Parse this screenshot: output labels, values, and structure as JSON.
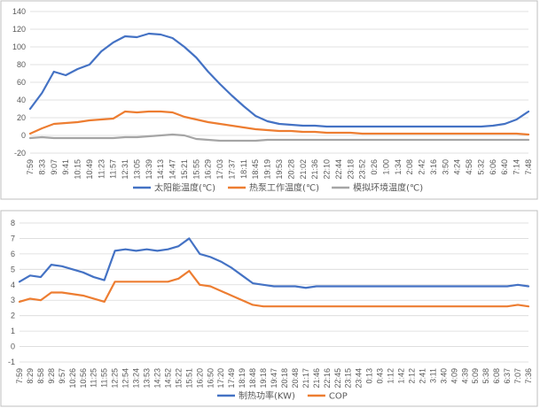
{
  "chart_data": [
    {
      "type": "line",
      "title": "",
      "xlabel": "",
      "ylabel": "",
      "ylim": [
        -20,
        140
      ],
      "yticks": [
        -20,
        0,
        20,
        40,
        60,
        80,
        100,
        120,
        140
      ],
      "grid": true,
      "legend_position": "bottom",
      "categories": [
        "7:59",
        "8:33",
        "9:07",
        "9:41",
        "10:15",
        "10:49",
        "11:23",
        "11:57",
        "12:31",
        "13:05",
        "13:39",
        "14:13",
        "14:47",
        "15:21",
        "15:55",
        "16:29",
        "17:03",
        "17:37",
        "18:11",
        "18:45",
        "19:19",
        "19:53",
        "20:28",
        "21:02",
        "21:36",
        "22:10",
        "22:44",
        "23:18",
        "23:52",
        "0:26",
        "1:00",
        "1:34",
        "2:08",
        "2:42",
        "3:16",
        "3:50",
        "4:24",
        "4:58",
        "5:32",
        "6:06",
        "6:40",
        "7:14",
        "7:48"
      ],
      "series": [
        {
          "name": "太阳能温度(℃)",
          "color": "#4472c4",
          "values": [
            30,
            48,
            72,
            68,
            75,
            80,
            95,
            105,
            112,
            111,
            115,
            114,
            110,
            100,
            88,
            72,
            58,
            45,
            33,
            22,
            16,
            13,
            12,
            11,
            11,
            10,
            10,
            10,
            10,
            10,
            10,
            10,
            10,
            10,
            10,
            10,
            10,
            10,
            10,
            11,
            13,
            18,
            27
          ]
        },
        {
          "name": "热泵工作温度(℃)",
          "color": "#ed7d31",
          "values": [
            2,
            8,
            13,
            14,
            15,
            17,
            18,
            19,
            27,
            26,
            27,
            27,
            26,
            21,
            18,
            15,
            13,
            11,
            9,
            7,
            6,
            5,
            5,
            4,
            4,
            3,
            3,
            3,
            2,
            2,
            2,
            2,
            2,
            2,
            2,
            2,
            2,
            2,
            2,
            2,
            2,
            2,
            1
          ]
        },
        {
          "name": "模拟环境温度(℃)",
          "color": "#a5a5a5",
          "values": [
            -3,
            -2,
            -3,
            -3,
            -3,
            -3,
            -3,
            -3,
            -2,
            -2,
            -1,
            0,
            1,
            0,
            -4,
            -5,
            -6,
            -6,
            -6,
            -6,
            -5,
            -5,
            -5,
            -5,
            -5,
            -5,
            -5,
            -5,
            -5,
            -5,
            -5,
            -5,
            -5,
            -5,
            -5,
            -5,
            -5,
            -5,
            -5,
            -5,
            -5,
            -5,
            -5
          ]
        }
      ]
    },
    {
      "type": "line",
      "title": "",
      "xlabel": "",
      "ylabel": "",
      "ylim": [
        -1,
        8
      ],
      "yticks": [
        -1,
        0,
        1,
        2,
        3,
        4,
        5,
        6,
        7,
        8
      ],
      "grid": true,
      "legend_position": "bottom",
      "categories": [
        "7:59",
        "8:29",
        "8:58",
        "9:28",
        "9:57",
        "10:26",
        "10:56",
        "11:25",
        "11:55",
        "12:25",
        "12:54",
        "13:24",
        "13:53",
        "14:23",
        "14:52",
        "15:22",
        "15:51",
        "16:20",
        "16:50",
        "17:20",
        "17:49",
        "18:19",
        "18:48",
        "19:18",
        "19:47",
        "20:18",
        "20:48",
        "21:17",
        "21:46",
        "22:16",
        "22:45",
        "23:15",
        "23:44",
        "0:13",
        "0:43",
        "1:12",
        "1:42",
        "2:12",
        "2:41",
        "3:11",
        "3:40",
        "4:09",
        "4:39",
        "5:09",
        "5:38",
        "6:08",
        "6:37",
        "7:07",
        "7:36"
      ],
      "series": [
        {
          "name": "制热功率(KW)",
          "color": "#4472c4",
          "values": [
            4.2,
            4.6,
            4.5,
            5.3,
            5.2,
            5.0,
            4.8,
            4.5,
            4.3,
            6.2,
            6.3,
            6.2,
            6.3,
            6.2,
            6.3,
            6.5,
            7.0,
            6.0,
            5.8,
            5.5,
            5.1,
            4.6,
            4.1,
            4.0,
            3.9,
            3.9,
            3.9,
            3.8,
            3.9,
            3.9,
            3.9,
            3.9,
            3.9,
            3.9,
            3.9,
            3.9,
            3.9,
            3.9,
            3.9,
            3.9,
            3.9,
            3.9,
            3.9,
            3.9,
            3.9,
            3.9,
            3.9,
            4.0,
            3.9
          ]
        },
        {
          "name": "COP",
          "color": "#ed7d31",
          "values": [
            2.9,
            3.1,
            3.0,
            3.5,
            3.5,
            3.4,
            3.3,
            3.1,
            2.9,
            4.2,
            4.2,
            4.2,
            4.2,
            4.2,
            4.2,
            4.4,
            4.9,
            4.0,
            3.9,
            3.6,
            3.3,
            3.0,
            2.7,
            2.6,
            2.6,
            2.6,
            2.6,
            2.6,
            2.6,
            2.6,
            2.6,
            2.6,
            2.6,
            2.6,
            2.6,
            2.6,
            2.6,
            2.6,
            2.6,
            2.6,
            2.6,
            2.6,
            2.6,
            2.6,
            2.6,
            2.6,
            2.6,
            2.7,
            2.6
          ]
        }
      ]
    }
  ]
}
